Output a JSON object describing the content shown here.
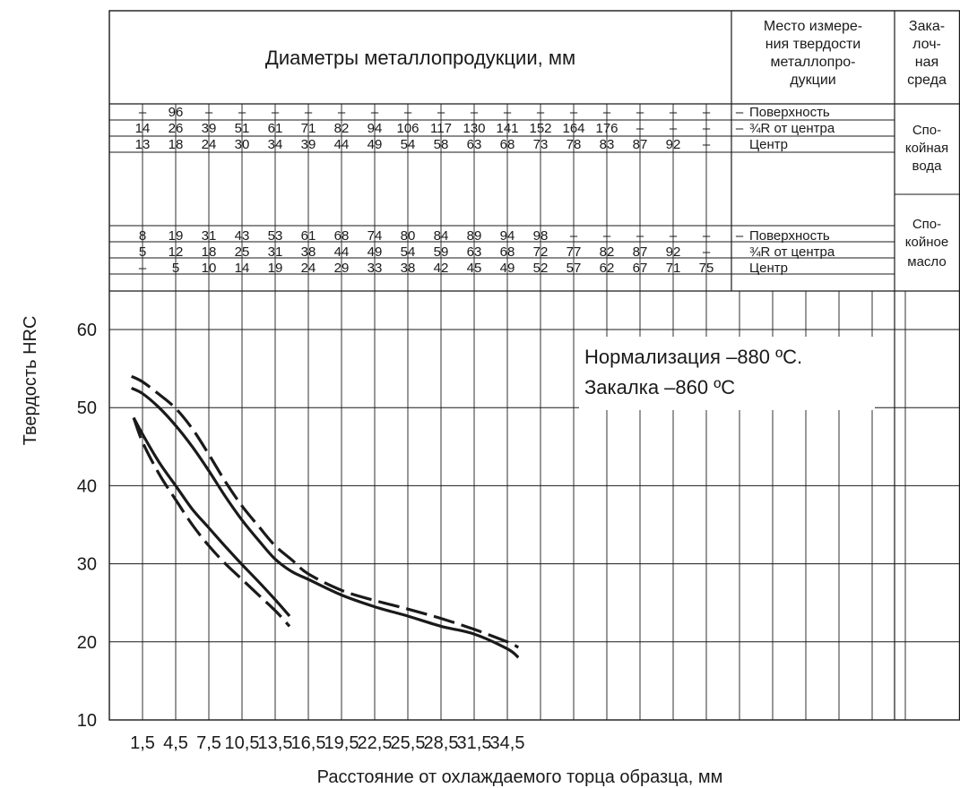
{
  "header": {
    "diameters_title": "Диаметры металлопродукции, мм",
    "location_title": [
      "Место измере-",
      "ния твердости",
      "металлопро-",
      "дукции"
    ],
    "medium_title": [
      "Зака-",
      "лоч-",
      "ная",
      "среда"
    ]
  },
  "table": {
    "water": {
      "medium": [
        "Спо-",
        "койная",
        "вода"
      ],
      "rows": [
        {
          "location": "Поверхность",
          "values": [
            "–",
            "96",
            "–",
            "–",
            "–",
            "–",
            "–",
            "–",
            "–",
            "–",
            "–",
            "–",
            "–",
            "–",
            "–",
            "–",
            "–",
            "–",
            "–"
          ]
        },
        {
          "location": "¾R от центра",
          "values": [
            "14",
            "26",
            "39",
            "51",
            "61",
            "71",
            "82",
            "94",
            "106",
            "117",
            "130",
            "141",
            "152",
            "164",
            "176",
            "–",
            "–",
            "–",
            "–"
          ]
        },
        {
          "location": "Центр",
          "values": [
            "13",
            "18",
            "24",
            "30",
            "34",
            "39",
            "44",
            "49",
            "54",
            "58",
            "63",
            "68",
            "73",
            "78",
            "83",
            "87",
            "92",
            "–",
            ""
          ]
        }
      ]
    },
    "oil": {
      "medium": [
        "Спо-",
        "койное",
        "масло"
      ],
      "rows": [
        {
          "location": "Поверхность",
          "values": [
            "8",
            "19",
            "31",
            "43",
            "53",
            "61",
            "68",
            "74",
            "80",
            "84",
            "89",
            "94",
            "98",
            "–",
            "–",
            "–",
            "–",
            "–",
            "–"
          ]
        },
        {
          "location": "¾R от центра",
          "values": [
            "5",
            "12",
            "18",
            "25",
            "31",
            "38",
            "44",
            "49",
            "54",
            "59",
            "63",
            "68",
            "72",
            "77",
            "82",
            "87",
            "92",
            "–",
            ""
          ]
        },
        {
          "location": "Центр",
          "values": [
            "–",
            "5",
            "10",
            "14",
            "19",
            "24",
            "29",
            "33",
            "38",
            "42",
            "45",
            "49",
            "52",
            "57",
            "62",
            "67",
            "71",
            "75",
            ""
          ]
        }
      ]
    }
  },
  "annotation": [
    "Нормализация –880 ºС.",
    "Закалка –860 ºС"
  ],
  "chart_data": {
    "type": "line",
    "title": "",
    "xlabel": "Расстояние от охлаждаемого торца образца, мм",
    "ylabel": "Твердость HRC",
    "x_ticks": [
      "1,5",
      "4,5",
      "7,5",
      "10,5",
      "13,5",
      "16,5",
      "19,5",
      "22,5",
      "25,5",
      "28,5",
      "31,5",
      "34,5"
    ],
    "y_ticks": [
      "10",
      "20",
      "30",
      "40",
      "50",
      "60"
    ],
    "xlim": [
      0,
      39
    ],
    "ylim": [
      10,
      65
    ],
    "grid": true,
    "series": [
      {
        "style": "dashed",
        "x": [
          0.5,
          1.5,
          3,
          4.5,
          6,
          7.5,
          9,
          10.5,
          12,
          13.5,
          15,
          16.5,
          19.5,
          22.5,
          25.5,
          28.5,
          31.5,
          34.5,
          35.5
        ],
        "y": [
          54,
          53.3,
          51.7,
          49.9,
          47.3,
          44,
          40.5,
          37.4,
          34.8,
          32.3,
          30.5,
          28.7,
          26.6,
          25.3,
          24.2,
          23,
          21.6,
          20,
          19.3
        ]
      },
      {
        "style": "solid",
        "x": [
          0.5,
          1.5,
          3,
          4.5,
          6,
          7.5,
          9,
          10.5,
          12,
          13.5,
          15,
          16.5,
          19.5,
          22.5,
          25.5,
          28.5,
          31.5,
          34.5,
          35.5
        ],
        "y": [
          52.5,
          51.8,
          50,
          47.7,
          45,
          41.9,
          38.6,
          35.6,
          33,
          30.6,
          29,
          28,
          26,
          24.5,
          23.3,
          22,
          21,
          19.1,
          18
        ]
      },
      {
        "style": "solid",
        "x": [
          0.7,
          1.5,
          3,
          4.5,
          6,
          7.5,
          9,
          10.5,
          12,
          13.5,
          14.8
        ],
        "y": [
          48.7,
          46.6,
          43,
          40,
          37,
          34.6,
          32.2,
          29.9,
          27.7,
          25.4,
          23.3
        ]
      },
      {
        "style": "dashed",
        "x": [
          0.7,
          1.5,
          3,
          4.5,
          6,
          7.5,
          9,
          10.5,
          12,
          13.5,
          14.8
        ],
        "y": [
          48.7,
          45.6,
          41.5,
          38.2,
          35,
          32.3,
          30,
          28,
          26,
          24,
          22
        ]
      }
    ]
  }
}
